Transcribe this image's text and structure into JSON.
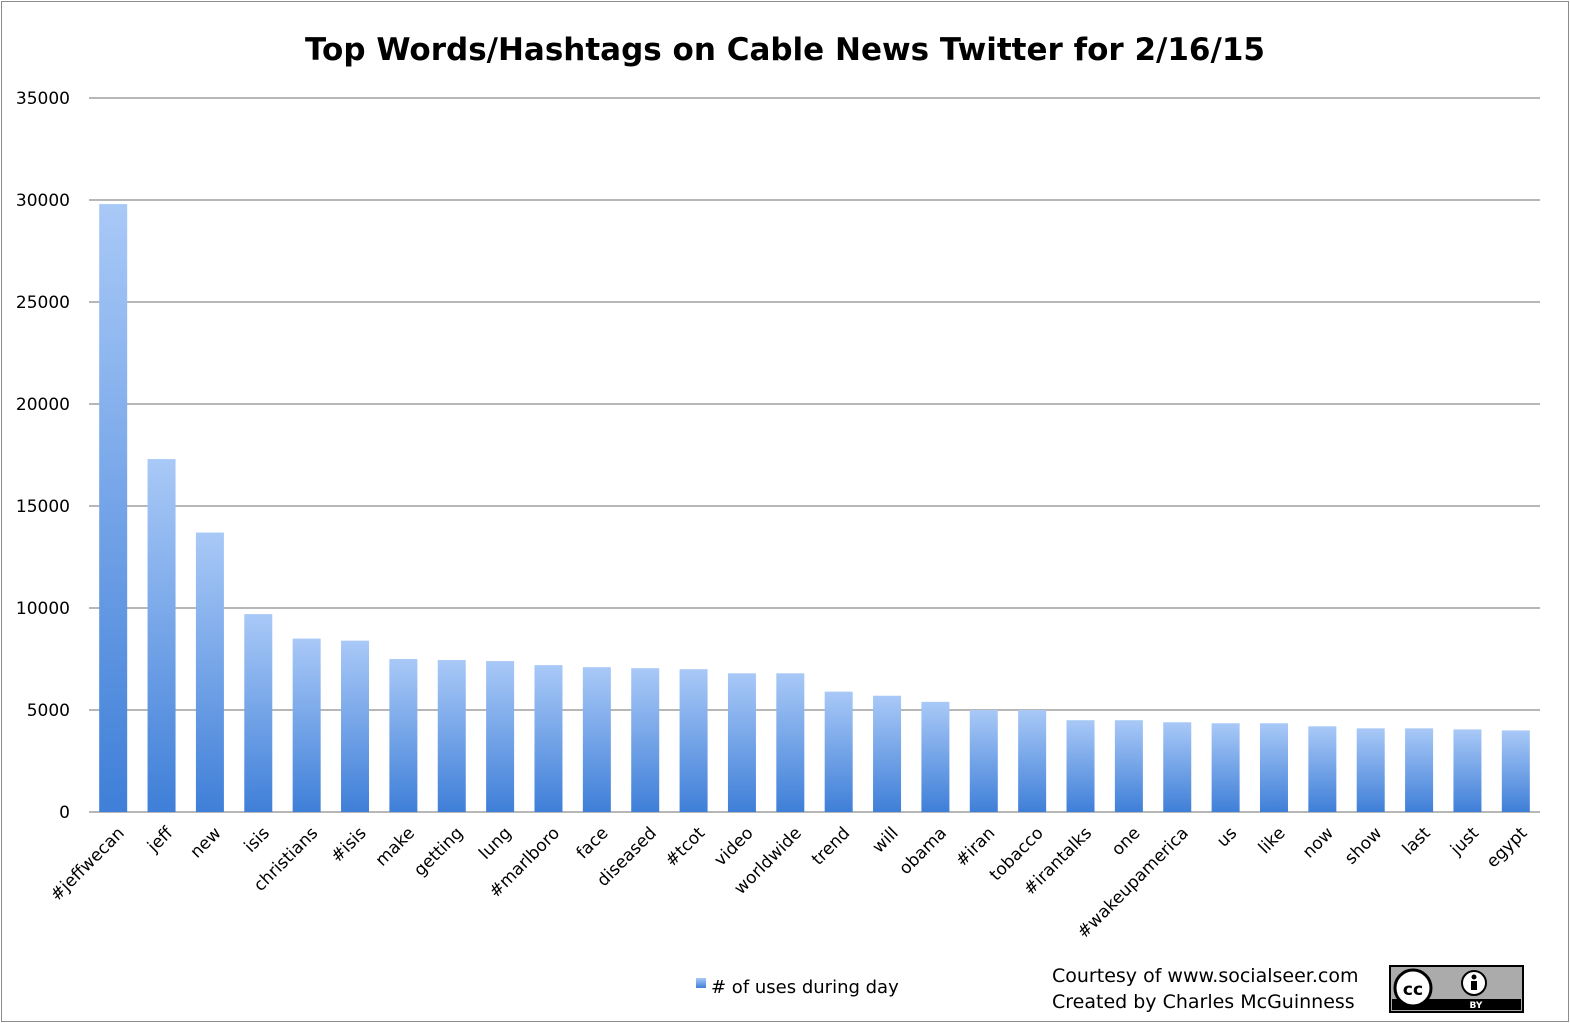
{
  "chart_data": {
    "type": "bar",
    "title": "Top Words/Hashtags on Cable News Twitter for 2/16/15",
    "xlabel": "",
    "ylabel": "",
    "ylim": [
      0,
      35000
    ],
    "yticks": [
      0,
      5000,
      10000,
      15000,
      20000,
      25000,
      30000,
      35000
    ],
    "grid": true,
    "legend": "bottom",
    "categories": [
      "#jeffwecan",
      "jeff",
      "new",
      "isis",
      "christians",
      "#isis",
      "make",
      "getting",
      "lung",
      "#marlboro",
      "face",
      "diseased",
      "#tcot",
      "video",
      "worldwide",
      "trend",
      "will",
      "obama",
      "#iran",
      "tobacco",
      "#irantalks",
      "one",
      "#wakeupamerica",
      "us",
      "like",
      "now",
      "show",
      "last",
      "just",
      "egypt"
    ],
    "series": [
      {
        "name": "# of uses during day",
        "values": [
          29800,
          17300,
          13700,
          9700,
          8500,
          8400,
          7500,
          7450,
          7400,
          7200,
          7100,
          7050,
          7000,
          6800,
          6800,
          5900,
          5700,
          5400,
          5000,
          5000,
          4500,
          4500,
          4400,
          4350,
          4350,
          4200,
          4100,
          4100,
          4050,
          4000
        ]
      }
    ],
    "colors": {
      "bar_top": "#a9c9f7",
      "bar_bottom": "#3f7fd8",
      "grid": "#8c8c8c"
    }
  },
  "credits": {
    "line1": "Courtesy of www.socialseer.com",
    "line2": "Created by Charles McGuinness"
  },
  "license_badge": {
    "icon": "cc-by-icon",
    "cc_text": "cc",
    "by_text": "BY"
  }
}
